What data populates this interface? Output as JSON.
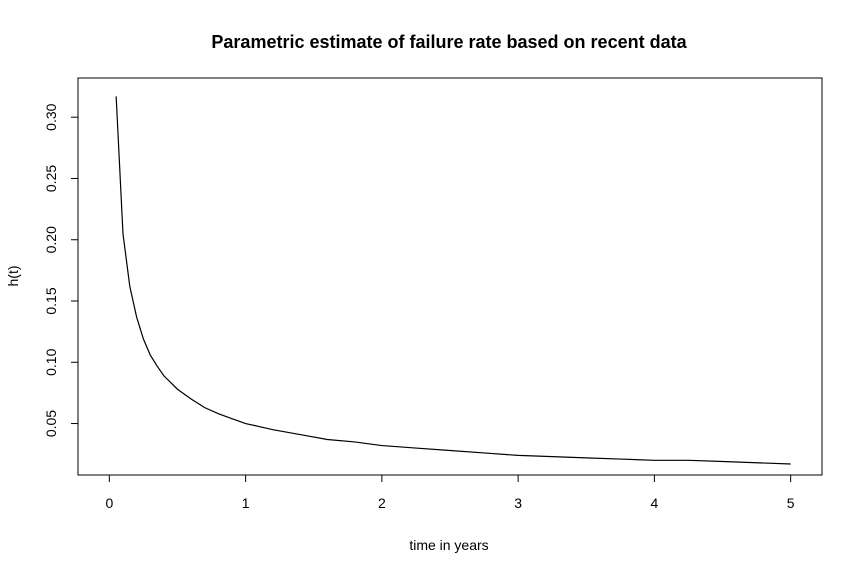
{
  "chart_data": {
    "type": "line",
    "title": "Parametric estimate of failure rate based on recent data",
    "xlabel": "time in years",
    "ylabel": "h(t)",
    "xlim": [
      -0.23,
      5.23
    ],
    "ylim": [
      0.008,
      0.332
    ],
    "xticks": [
      0,
      1,
      2,
      3,
      4,
      5
    ],
    "xtick_labels": [
      "0",
      "1",
      "2",
      "3",
      "4",
      "5"
    ],
    "yticks": [
      0.05,
      0.1,
      0.15,
      0.2,
      0.25,
      0.3
    ],
    "ytick_labels": [
      "0.05",
      "0.10",
      "0.15",
      "0.20",
      "0.25",
      "0.30"
    ],
    "grid": false,
    "line_color": "#000000",
    "series": [
      {
        "x": [
          0.05,
          0.1,
          0.15,
          0.2,
          0.25,
          0.3,
          0.35,
          0.4,
          0.5,
          0.6,
          0.7,
          0.8,
          0.9,
          1.0,
          1.2,
          1.4,
          1.6,
          1.8,
          2.0,
          2.25,
          2.5,
          2.75,
          3.0,
          3.25,
          3.5,
          3.75,
          4.0,
          4.25,
          4.5,
          4.75,
          5.0
        ],
        "y": [
          0.317,
          0.205,
          0.162,
          0.137,
          0.119,
          0.106,
          0.097,
          0.089,
          0.078,
          0.07,
          0.063,
          0.058,
          0.054,
          0.05,
          0.045,
          0.041,
          0.037,
          0.035,
          0.032,
          0.03,
          0.028,
          0.026,
          0.024,
          0.023,
          0.022,
          0.021,
          0.02,
          0.02,
          0.019,
          0.018,
          0.017
        ]
      }
    ]
  }
}
